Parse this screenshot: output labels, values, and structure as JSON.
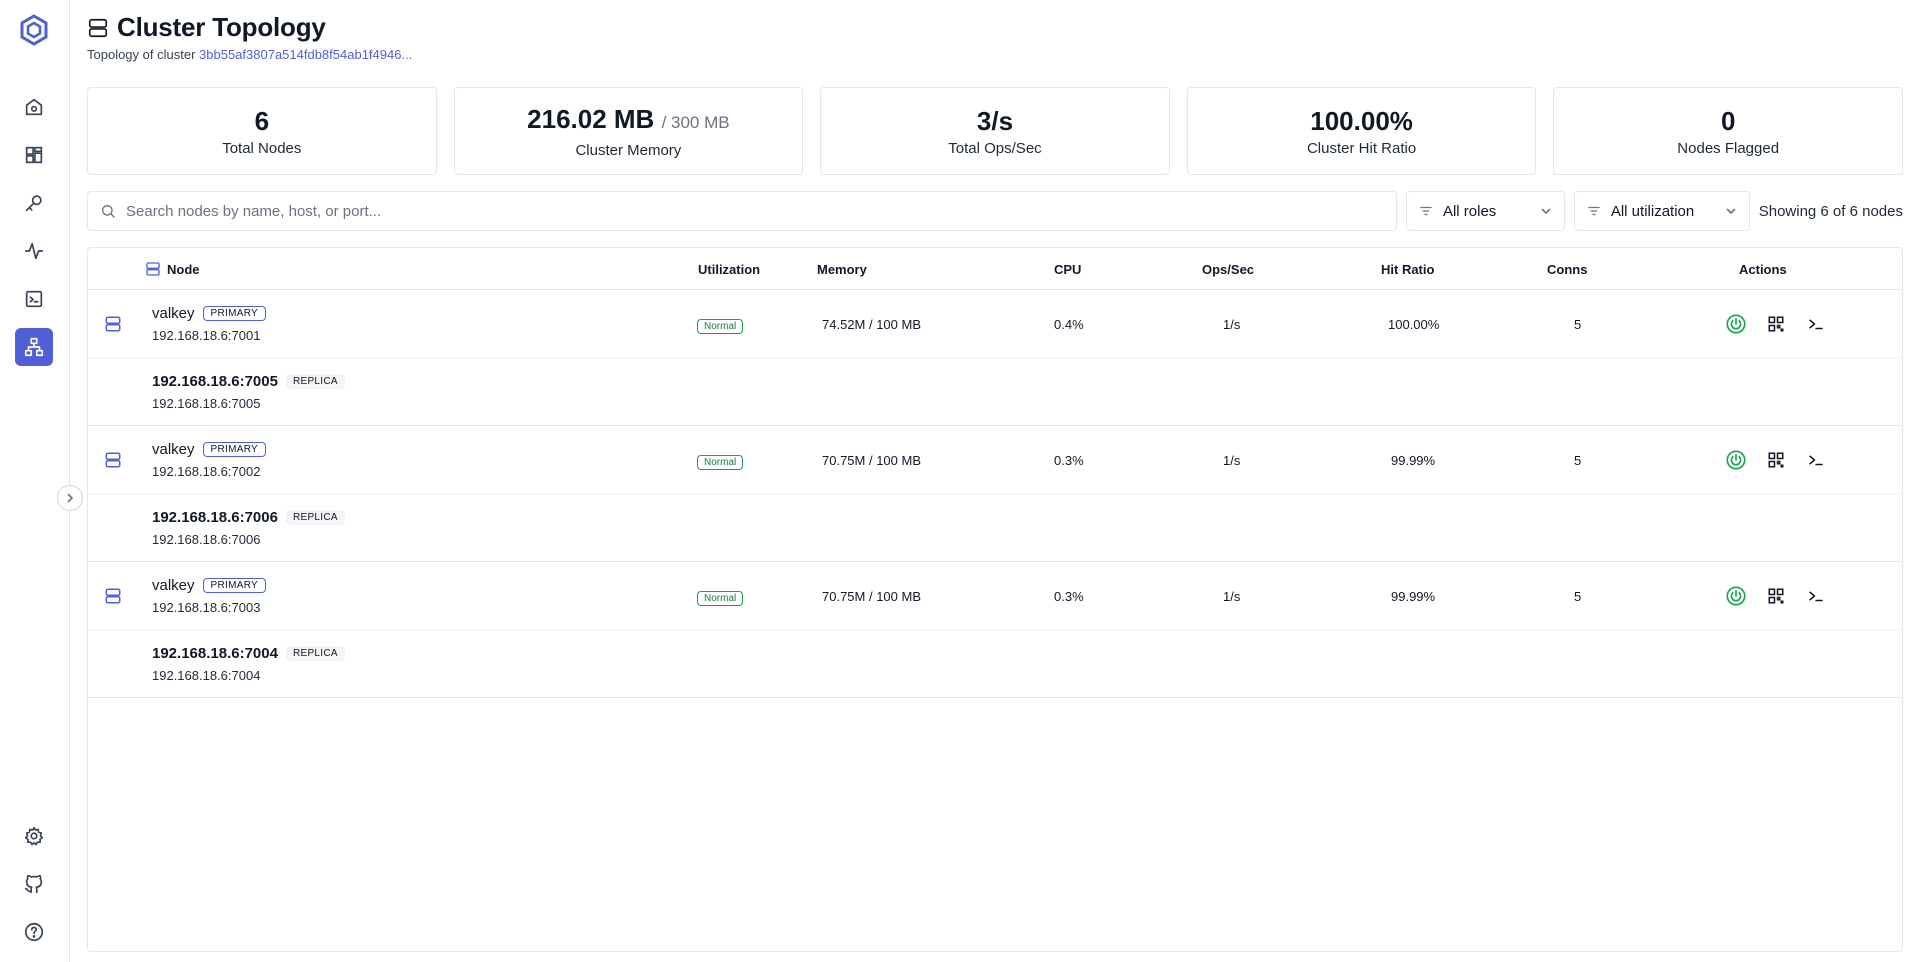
{
  "page": {
    "title": "Cluster Topology",
    "subtitle_prefix": "Topology of cluster",
    "cluster_id": "3bb55af3807a514fdb8f54ab1f4946..."
  },
  "stats": [
    {
      "value": "6",
      "sub": "",
      "label": "Total Nodes"
    },
    {
      "value": "216.02 MB",
      "sub": "/ 300 MB",
      "label": "Cluster Memory"
    },
    {
      "value": "3/s",
      "sub": "",
      "label": "Total Ops/Sec"
    },
    {
      "value": "100.00%",
      "sub": "",
      "label": "Cluster Hit Ratio"
    },
    {
      "value": "0",
      "sub": "",
      "label": "Nodes Flagged"
    }
  ],
  "filters": {
    "search_placeholder": "Search nodes by name, host, or port...",
    "roles": "All roles",
    "utilization": "All utilization",
    "showing": "Showing 6 of 6 nodes"
  },
  "table": {
    "headers": {
      "node": "Node",
      "utilization": "Utilization",
      "memory": "Memory",
      "cpu": "CPU",
      "ops": "Ops/Sec",
      "hit": "Hit Ratio",
      "conns": "Conns",
      "actions": "Actions"
    },
    "groups": [
      {
        "primary": {
          "name": "valkey",
          "role": "PRIMARY",
          "host": "192.168.18.6:7001",
          "utilization": "Normal",
          "memory": "74.52M / 100 MB",
          "cpu": "0.4%",
          "ops": "1/s",
          "hit": "100.00%",
          "conns": "5"
        },
        "replica": {
          "name": "192.168.18.6:7005",
          "role": "REPLICA",
          "host": "192.168.18.6:7005"
        }
      },
      {
        "primary": {
          "name": "valkey",
          "role": "PRIMARY",
          "host": "192.168.18.6:7002",
          "utilization": "Normal",
          "memory": "70.75M / 100 MB",
          "cpu": "0.3%",
          "ops": "1/s",
          "hit": "99.99%",
          "conns": "5"
        },
        "replica": {
          "name": "192.168.18.6:7006",
          "role": "REPLICA",
          "host": "192.168.18.6:7006"
        }
      },
      {
        "primary": {
          "name": "valkey",
          "role": "PRIMARY",
          "host": "192.168.18.6:7003",
          "utilization": "Normal",
          "memory": "70.75M / 100 MB",
          "cpu": "0.3%",
          "ops": "1/s",
          "hit": "99.99%",
          "conns": "5"
        },
        "replica": {
          "name": "192.168.18.6:7004",
          "role": "REPLICA",
          "host": "192.168.18.6:7004"
        }
      }
    ]
  },
  "colors": {
    "accent": "#4f5fd6",
    "success": "#16a34a",
    "border": "#e5e7eb"
  },
  "icons": {
    "logo": "valkey-logo-icon",
    "sidebar": [
      "home-icon",
      "dashboard-grid-icon",
      "key-icon",
      "activity-icon",
      "terminal-icon",
      "topology-icon",
      "settings-icon",
      "github-icon",
      "help-icon"
    ],
    "actions": [
      "power-icon",
      "qr-grid-icon",
      "console-icon"
    ]
  }
}
